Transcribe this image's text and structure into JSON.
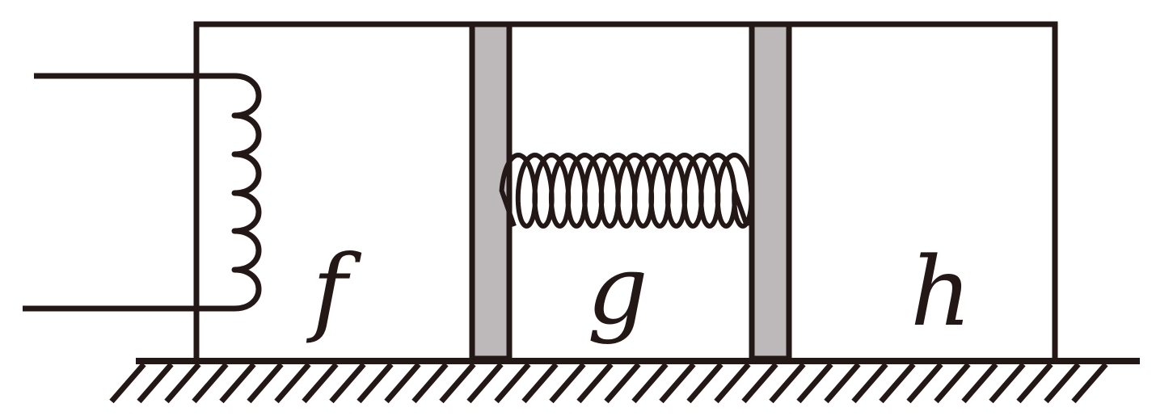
{
  "colors": {
    "ink": "#231815",
    "piston_fill": "#bdb9bb",
    "background": "#ffffff"
  },
  "chambers": [
    {
      "label": "f"
    },
    {
      "label": "g"
    },
    {
      "label": "h"
    }
  ],
  "icons": {
    "coil": "heating-coil-icon",
    "spring": "spring-icon",
    "ground": "hatched-ground-icon"
  }
}
